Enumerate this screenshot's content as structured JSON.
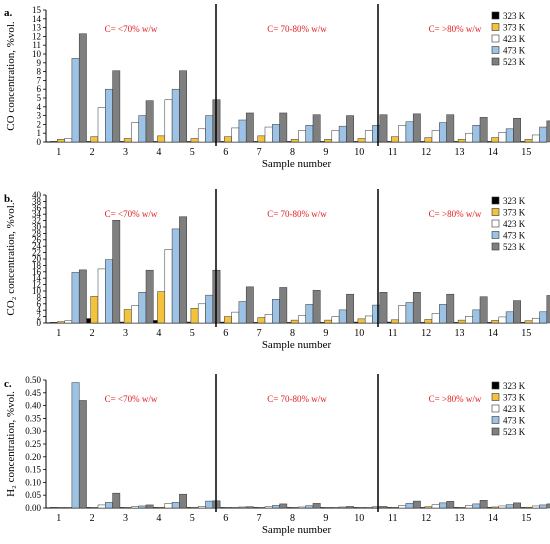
{
  "chart_data": [
    {
      "type": "bar",
      "panel_label": "a.",
      "ylabel": "CO concentration, %vol.",
      "xlabel": "Sample number",
      "ylim": [
        0,
        15
      ],
      "yticks": [
        0,
        1,
        2,
        3,
        4,
        5,
        6,
        7,
        8,
        9,
        10,
        11,
        12,
        13,
        14,
        15
      ],
      "categories": [
        "1",
        "2",
        "3",
        "4",
        "5",
        "6",
        "7",
        "8",
        "9",
        "10",
        "11",
        "12",
        "13",
        "14",
        "15"
      ],
      "region_labels": [
        "C= <70% w/w",
        "C= 70-80% w/w",
        "C= >80% w/w"
      ],
      "series": [
        {
          "name": "323 K",
          "values": [
            0.05,
            0.05,
            0.05,
            0.05,
            0.05,
            0.05,
            0.05,
            0.05,
            0.05,
            0.05,
            0.05,
            0.05,
            0.05,
            0.05,
            0.05
          ]
        },
        {
          "name": "373 K",
          "values": [
            0.3,
            0.6,
            0.4,
            0.7,
            0.4,
            0.6,
            0.7,
            0.3,
            0.3,
            0.4,
            0.6,
            0.5,
            0.3,
            0.5,
            0.3
          ]
        },
        {
          "name": "423 K",
          "values": [
            0.4,
            3.9,
            2.2,
            4.8,
            1.5,
            1.6,
            1.7,
            1.3,
            1.3,
            1.3,
            1.9,
            1.3,
            1.0,
            1.1,
            0.8
          ]
        },
        {
          "name": "473 K",
          "values": [
            9.5,
            6.0,
            3.0,
            6.0,
            3.0,
            2.5,
            2.0,
            1.9,
            1.8,
            1.9,
            2.3,
            2.2,
            1.9,
            1.5,
            1.7
          ]
        },
        {
          "name": "523 K",
          "values": [
            12.3,
            8.1,
            4.7,
            8.1,
            4.8,
            3.3,
            3.3,
            3.1,
            3.0,
            3.1,
            3.2,
            3.1,
            2.8,
            2.7,
            2.4
          ]
        }
      ]
    },
    {
      "type": "bar",
      "panel_label": "b.",
      "ylabel": "CO₂ concentration, %vol.",
      "xlabel": "Sample number",
      "ylim": [
        0,
        40
      ],
      "yticks": [
        0,
        2,
        4,
        6,
        8,
        10,
        12,
        14,
        16,
        18,
        20,
        22,
        24,
        26,
        28,
        30,
        32,
        34,
        36,
        38,
        40
      ],
      "categories": [
        "1",
        "2",
        "3",
        "4",
        "5",
        "6",
        "7",
        "8",
        "9",
        "10",
        "11",
        "12",
        "13",
        "14",
        "15"
      ],
      "region_labels": [
        "C= <70% w/w",
        "C= 70-80% w/w",
        "C= >80% w/w"
      ],
      "series": [
        {
          "name": "323 K",
          "values": [
            0.2,
            1.4,
            0.3,
            0.8,
            0.3,
            0.3,
            0.2,
            0.2,
            0.2,
            0.3,
            0.3,
            0.2,
            0.2,
            0.2,
            0.2
          ]
        },
        {
          "name": "373 K",
          "values": [
            0.4,
            8.3,
            4.2,
            9.8,
            4.6,
            2.0,
            1.7,
            0.9,
            0.9,
            1.3,
            1.0,
            1.1,
            0.9,
            0.8,
            0.7
          ]
        },
        {
          "name": "423 K",
          "values": [
            0.7,
            16.9,
            5.4,
            23.0,
            6.0,
            3.4,
            2.7,
            2.3,
            2.0,
            2.2,
            5.5,
            3.0,
            2.1,
            1.9,
            1.5
          ]
        },
        {
          "name": "473 K",
          "values": [
            15.8,
            19.8,
            9.6,
            29.4,
            8.7,
            6.7,
            7.4,
            5.8,
            4.1,
            5.6,
            6.4,
            5.8,
            4.1,
            3.5,
            3.5
          ]
        },
        {
          "name": "523 K",
          "values": [
            16.6,
            32.1,
            16.5,
            33.2,
            16.5,
            11.3,
            11.1,
            10.2,
            9.0,
            9.6,
            9.6,
            9.0,
            8.2,
            7.0,
            8.6
          ]
        }
      ]
    },
    {
      "type": "bar",
      "panel_label": "c.",
      "ylabel": "H₂ concentration, %vol.",
      "xlabel": "Sample number",
      "ylim": [
        0,
        0.5
      ],
      "yticks": [
        "0.00",
        "0.05",
        "0.10",
        "0.15",
        "0.20",
        "0.25",
        "0.30",
        "0.35",
        "0.40",
        "0.45",
        "0.50"
      ],
      "categories": [
        "1",
        "2",
        "3",
        "4",
        "5",
        "6",
        "7",
        "8",
        "9",
        "10",
        "11",
        "12",
        "13",
        "14",
        "15"
      ],
      "region_labels": [
        "C= <70% w/w",
        "C= 70-80% w/w",
        "C= >80% w/w"
      ],
      "series": [
        {
          "name": "323 K",
          "values": [
            0.001,
            0.001,
            0.001,
            0.001,
            0.001,
            0.001,
            0.001,
            0.001,
            0.001,
            0.001,
            0.001,
            0.001,
            0.001,
            0.001,
            0.001
          ]
        },
        {
          "name": "373 K",
          "values": [
            0.001,
            0.002,
            0.001,
            0.003,
            0.001,
            0.001,
            0.001,
            0.001,
            0.001,
            0.001,
            0.003,
            0.005,
            0.003,
            0.004,
            0.003
          ]
        },
        {
          "name": "423 K",
          "values": [
            0.002,
            0.012,
            0.005,
            0.018,
            0.006,
            0.003,
            0.005,
            0.004,
            0.003,
            0.003,
            0.01,
            0.013,
            0.01,
            0.008,
            0.008
          ]
        },
        {
          "name": "473 K",
          "values": [
            0.49,
            0.022,
            0.008,
            0.022,
            0.027,
            0.004,
            0.01,
            0.009,
            0.004,
            0.005,
            0.018,
            0.02,
            0.016,
            0.013,
            0.012
          ]
        },
        {
          "name": "523 K",
          "values": [
            0.42,
            0.058,
            0.012,
            0.054,
            0.028,
            0.005,
            0.016,
            0.018,
            0.006,
            0.006,
            0.027,
            0.026,
            0.03,
            0.02,
            0.016
          ]
        }
      ]
    }
  ],
  "legend": {
    "entries": [
      "323 K",
      "373 K",
      "423 K",
      "473 K",
      "523 K"
    ],
    "colors": [
      "#000000",
      "#f5c23c",
      "#ffffff",
      "#9cc3e6",
      "#7f7f7f"
    ]
  },
  "colors": {
    "region_label": "#e41a1c",
    "divider": "#000000",
    "bar_stroke": "#333333"
  }
}
